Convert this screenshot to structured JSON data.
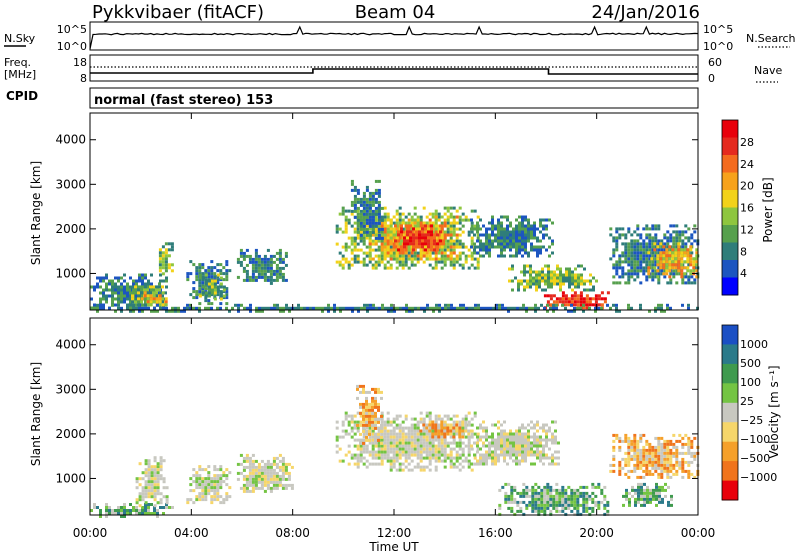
{
  "header": {
    "station": "Pykkvibaer (fitACF)",
    "beam": "Beam 04",
    "date": "24/Jan/2016"
  },
  "noise_panel": {
    "left_label": "N.Sky",
    "right_label": "N.Search",
    "left_ticks": [
      "10^5",
      "10^0"
    ],
    "right_ticks": [
      "10^5",
      "10^0"
    ]
  },
  "freq_panel": {
    "left_label_1": "Freq.",
    "left_label_2": "[MHz]",
    "right_label": "Nave",
    "left_ticks": [
      "18",
      "8"
    ],
    "right_ticks": [
      "60",
      "0"
    ]
  },
  "cpid": {
    "label": "CPID",
    "value": "normal (fast stereo) 153"
  },
  "chart_data": [
    {
      "type": "heatmap",
      "name": "power",
      "ylabel": "Slant Range [km]",
      "ylim": [
        180,
        4600
      ],
      "y_ticks": [
        "1000",
        "2000",
        "3000",
        "4000"
      ],
      "y_tick_values": [
        1000,
        2000,
        3000,
        4000
      ],
      "xlim": [
        0,
        24
      ],
      "colorbar": {
        "label": "Power [dB]",
        "ticks": [
          "4",
          "8",
          "12",
          "16",
          "20",
          "24",
          "28"
        ],
        "colors": [
          "#0000ff",
          "#1c55c0",
          "#2f7d7a",
          "#56a04d",
          "#8ec63f",
          "#f2d21a",
          "#f7a21b",
          "#f46b1e",
          "#e52a1e",
          "#e8000b"
        ]
      },
      "patches": [
        {
          "t": [
            0.0,
            3.0
          ],
          "r": [
            200,
            1000
          ],
          "level": "weak"
        },
        {
          "t": [
            1.5,
            3.0
          ],
          "r": [
            300,
            800
          ],
          "level": "medium"
        },
        {
          "t": [
            2.0,
            3.0
          ],
          "r": [
            300,
            600
          ],
          "level": "strong"
        },
        {
          "t": [
            2.6,
            3.2
          ],
          "r": [
            1000,
            1700
          ],
          "level": "medium"
        },
        {
          "t": [
            3.8,
            5.5
          ],
          "r": [
            350,
            1300
          ],
          "level": "weak"
        },
        {
          "t": [
            4.3,
            5.3
          ],
          "r": [
            450,
            1000
          ],
          "level": "medium"
        },
        {
          "t": [
            5.8,
            7.8
          ],
          "r": [
            800,
            1550
          ],
          "level": "weak"
        },
        {
          "t": [
            9.7,
            15.3
          ],
          "r": [
            1100,
            2500
          ],
          "level": "medium"
        },
        {
          "t": [
            11.0,
            14.5
          ],
          "r": [
            1300,
            2300
          ],
          "level": "strong"
        },
        {
          "t": [
            12.0,
            14.0
          ],
          "r": [
            1500,
            2100
          ],
          "level": "max"
        },
        {
          "t": [
            10.3,
            11.5
          ],
          "r": [
            1800,
            3100
          ],
          "level": "weak"
        },
        {
          "t": [
            15.0,
            18.3
          ],
          "r": [
            1400,
            2300
          ],
          "level": "weak"
        },
        {
          "t": [
            16.5,
            20.0
          ],
          "r": [
            600,
            1200
          ],
          "level": "medium"
        },
        {
          "t": [
            17.8,
            20.5
          ],
          "r": [
            200,
            600
          ],
          "level": "max"
        },
        {
          "t": [
            20.5,
            24.0
          ],
          "r": [
            800,
            2100
          ],
          "level": "weak"
        },
        {
          "t": [
            22.0,
            24.0
          ],
          "r": [
            900,
            1700
          ],
          "level": "strong"
        },
        {
          "t": [
            0.0,
            24.0
          ],
          "r": [
            180,
            320
          ],
          "level": "weak"
        }
      ]
    },
    {
      "type": "heatmap",
      "name": "velocity",
      "ylabel": "Slant Range [km]",
      "ylim": [
        180,
        4600
      ],
      "y_ticks": [
        "1000",
        "2000",
        "3000",
        "4000"
      ],
      "y_tick_values": [
        1000,
        2000,
        3000,
        4000
      ],
      "xlim": [
        0,
        24
      ],
      "xlabel": "Time UT",
      "x_ticks": [
        "00:00",
        "04:00",
        "08:00",
        "12:00",
        "16:00",
        "20:00",
        "00:00"
      ],
      "x_tick_values": [
        0,
        4,
        8,
        12,
        16,
        20,
        24
      ],
      "colorbar": {
        "label": "Velocity [m s⁻¹]",
        "ticks": [
          "1000",
          "500",
          "100",
          "25",
          "−25",
          "−100",
          "−500",
          "−1000"
        ],
        "colors": [
          "#1b4fc4",
          "#2b7a8a",
          "#3f9a4e",
          "#74c443",
          "#c8c8c0",
          "#f6d66a",
          "#f5a02a",
          "#f0741c",
          "#e8000b"
        ]
      },
      "patches": [
        {
          "t": [
            0.0,
            3.2
          ],
          "r": [
            180,
            450
          ],
          "level": "green"
        },
        {
          "t": [
            1.8,
            3.0
          ],
          "r": [
            400,
            1500
          ],
          "level": "gray"
        },
        {
          "t": [
            3.8,
            5.5
          ],
          "r": [
            450,
            1300
          ],
          "level": "gray"
        },
        {
          "t": [
            5.8,
            8.0
          ],
          "r": [
            700,
            1550
          ],
          "level": "gray"
        },
        {
          "t": [
            9.7,
            15.3
          ],
          "r": [
            1200,
            2500
          ],
          "level": "gray"
        },
        {
          "t": [
            10.5,
            11.5
          ],
          "r": [
            1800,
            3100
          ],
          "level": "orange"
        },
        {
          "t": [
            13.0,
            15.2
          ],
          "r": [
            1900,
            2300
          ],
          "level": "orange"
        },
        {
          "t": [
            15.0,
            18.5
          ],
          "r": [
            1300,
            2300
          ],
          "level": "gray"
        },
        {
          "t": [
            16.0,
            20.5
          ],
          "r": [
            200,
            900
          ],
          "level": "green"
        },
        {
          "t": [
            20.5,
            24.0
          ],
          "r": [
            1000,
            2000
          ],
          "level": "orange"
        },
        {
          "t": [
            21.0,
            23.0
          ],
          "r": [
            400,
            900
          ],
          "level": "green"
        }
      ]
    }
  ]
}
